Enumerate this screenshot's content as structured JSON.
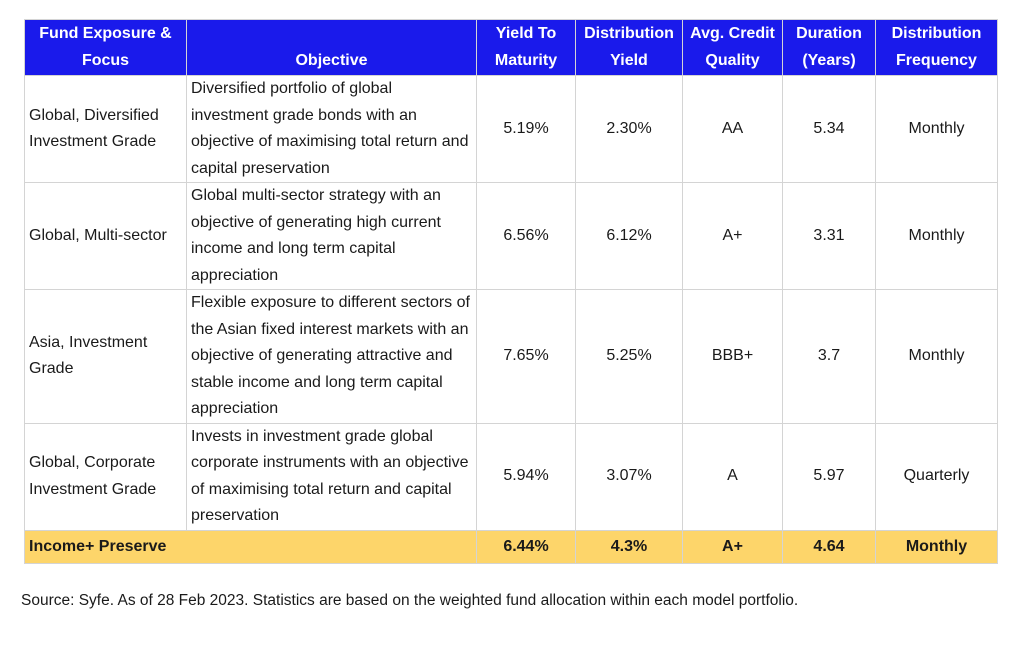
{
  "headers": {
    "fund": "Fund Exposure & Focus",
    "objective": "Objective",
    "ytm": "Yield To Maturity",
    "dist_yield": "Distribution Yield",
    "credit": "Avg. Credit Quality",
    "duration": "Duration (Years)",
    "frequency": "Distribution Frequency"
  },
  "rows": [
    {
      "fund": "Global, Diversified Investment Grade",
      "objective": "Diversified portfolio of global investment grade bonds with an objective of maximising total return and capital preservation",
      "ytm": "5.19%",
      "dist_yield": "2.30%",
      "credit": "AA",
      "duration": "5.34",
      "frequency": "Monthly"
    },
    {
      "fund": "Global, Multi-sector",
      "objective": "Global multi-sector strategy with an objective of generating high current income and long term capital appreciation",
      "ytm": "6.56%",
      "dist_yield": "6.12%",
      "credit": "A+",
      "duration": "3.31",
      "frequency": "Monthly"
    },
    {
      "fund": "Asia, Investment Grade",
      "objective": "Flexible exposure to different sectors of the Asian fixed interest markets with an objective of generating attractive and stable income and long term capital appreciation",
      "ytm": "7.65%",
      "dist_yield": "5.25%",
      "credit": "BBB+",
      "duration": "3.7",
      "frequency": "Monthly"
    },
    {
      "fund": "Global, Corporate Investment Grade",
      "objective": "Invests in investment grade global corporate instruments with an objective of maximising total return and capital preservation",
      "ytm": "5.94%",
      "dist_yield": "3.07%",
      "credit": "A",
      "duration": "5.97",
      "frequency": "Quarterly"
    }
  ],
  "summary": {
    "name": "Income+ Preserve",
    "ytm": "6.44%",
    "dist_yield": "4.3%",
    "credit": "A+",
    "duration": "4.64",
    "frequency": "Monthly"
  },
  "colors": {
    "header_bg": "#1a1aeb",
    "header_text": "#ffffff",
    "summary_bg": "#fdd56a"
  },
  "source_note": "Source: Syfe. As of 28 Feb 2023. Statistics are based on the weighted fund allocation within each model portfolio."
}
